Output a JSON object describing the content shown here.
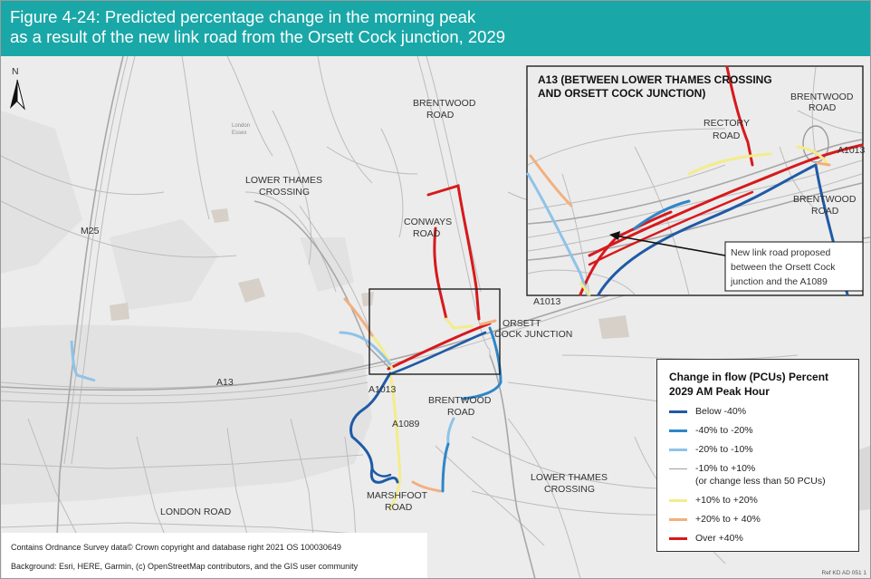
{
  "title": {
    "line1": "Figure 4-24: Predicted percentage change in the morning peak",
    "line2": "as a result of the new link road from the Orsett Cock junction, 2029"
  },
  "north_label": "N",
  "map_labels": {
    "brentwood_road_n": [
      "BRENTWOOD",
      "ROAD"
    ],
    "lower_thames_crossing_nw": [
      "LOWER THAMES",
      "CROSSING"
    ],
    "conways_road": [
      "CONWAYS",
      "ROAD"
    ],
    "m25": "M25",
    "a13": "A13",
    "a1013_right": "A1013",
    "orsett_cock_junction": [
      "ORSETT",
      "COCK JUNCTION"
    ],
    "a1013_left": "A1013",
    "brentwood_road_s": [
      "BRENTWOOD",
      "ROAD"
    ],
    "a1089": "A1089",
    "lower_thames_crossing_se": [
      "LOWER THAMES",
      "CROSSING"
    ],
    "marshfoot_road": [
      "MARSHFOOT",
      "ROAD"
    ],
    "london_road": "LONDON ROAD",
    "london_essex": [
      "London",
      "Essex"
    ]
  },
  "inset": {
    "title_line1": "A13 (BETWEEN LOWER THAMES CROSSING",
    "title_line2": "AND ORSETT COCK JUNCTION)",
    "labels": {
      "brentwood_road_top": [
        "BRENTWOOD",
        "ROAD"
      ],
      "rectory_road": [
        "RECTORY",
        "ROAD"
      ],
      "a1013": "A1013",
      "brentwood_road_mid": [
        "BRENTWOOD",
        "ROAD"
      ]
    },
    "callout": [
      "New link road proposed",
      "between the Orsett Cock",
      "junction and the A1089"
    ]
  },
  "legend": {
    "title_line1": "Change in flow (PCUs) Percent",
    "title_line2": "2029 AM Peak Hour",
    "items": [
      {
        "label": "Below -40%",
        "note": "",
        "color": "#1f5aa6"
      },
      {
        "label": "-40% to -20%",
        "note": "",
        "color": "#2f86c8"
      },
      {
        "label": "-20% to -10%",
        "note": "",
        "color": "#8fc3e8"
      },
      {
        "label": "-10% to +10%",
        "note": "(or change less than 50 PCUs)",
        "color": "#9e9e9e"
      },
      {
        "label": "+10% to +20%",
        "note": "",
        "color": "#f4ec8a"
      },
      {
        "label": "+20% to + 40%",
        "note": "",
        "color": "#f2b07e"
      },
      {
        "label": "Over +40%",
        "note": "",
        "color": "#d7191c"
      }
    ]
  },
  "credits": {
    "line1": "Contains Ordnance Survey data© Crown copyright and database right 2021 OS 100030649",
    "line2": "Background: Esri, HERE, Garmin, (c) OpenStreetMap contributors, and the GIS user community"
  },
  "reference": "Ref KD AD 051 1",
  "colors": {
    "title_bar": "#1aa7a8",
    "map_background": "#ececec",
    "road": "#bdbdbd",
    "urban": "#e0e0e0"
  }
}
